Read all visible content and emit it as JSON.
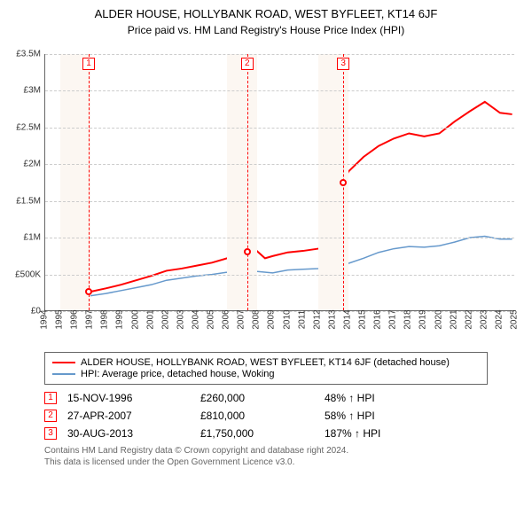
{
  "title": "ALDER HOUSE, HOLLYBANK ROAD, WEST BYFLEET, KT14 6JF",
  "subtitle": "Price paid vs. HM Land Registry's House Price Index (HPI)",
  "chart": {
    "type": "line",
    "xlim": [
      1994,
      2025
    ],
    "ylim": [
      0,
      3500000
    ],
    "ytick_step": 500000,
    "yticks": [
      "£0",
      "£500K",
      "£1M",
      "£1.5M",
      "£2M",
      "£2.5M",
      "£3M",
      "£3.5M"
    ],
    "xticks": [
      1994,
      1995,
      1996,
      1997,
      1998,
      1999,
      2000,
      2001,
      2002,
      2003,
      2004,
      2005,
      2006,
      2007,
      2008,
      2009,
      2010,
      2011,
      2012,
      2013,
      2014,
      2015,
      2016,
      2017,
      2018,
      2019,
      2020,
      2021,
      2022,
      2023,
      2024,
      2025
    ],
    "grid_color": "#cccccc",
    "background_color": "#ffffff",
    "shaded_bands": [
      [
        1995,
        1997
      ],
      [
        2006,
        2008
      ],
      [
        2012,
        2014
      ]
    ],
    "shade_color": "#fcf7f2",
    "series": [
      {
        "name": "ALDER HOUSE, HOLLYBANK ROAD, WEST BYFLEET, KT14 6JF (detached house)",
        "color": "#ff0000",
        "line_width": 2,
        "points": [
          [
            1995,
            200000
          ],
          [
            1996.87,
            260000
          ],
          [
            1998,
            310000
          ],
          [
            1999,
            360000
          ],
          [
            2000,
            420000
          ],
          [
            2001,
            480000
          ],
          [
            2002,
            550000
          ],
          [
            2003,
            580000
          ],
          [
            2004,
            620000
          ],
          [
            2005,
            660000
          ],
          [
            2006,
            720000
          ],
          [
            2007,
            810000
          ],
          [
            2007.8,
            850000
          ],
          [
            2008.5,
            720000
          ],
          [
            2009,
            750000
          ],
          [
            2010,
            800000
          ],
          [
            2011,
            820000
          ],
          [
            2012,
            850000
          ],
          [
            2013,
            880000
          ],
          [
            2013.66,
            1750000
          ],
          [
            2014,
            1900000
          ],
          [
            2015,
            2100000
          ],
          [
            2016,
            2250000
          ],
          [
            2017,
            2350000
          ],
          [
            2018,
            2420000
          ],
          [
            2019,
            2380000
          ],
          [
            2020,
            2420000
          ],
          [
            2021,
            2580000
          ],
          [
            2022,
            2720000
          ],
          [
            2023,
            2850000
          ],
          [
            2024,
            2700000
          ],
          [
            2024.8,
            2680000
          ]
        ]
      },
      {
        "name": "HPI: Average price, detached house, Woking",
        "color": "#6699cc",
        "line_width": 1.5,
        "points": [
          [
            1995,
            180000
          ],
          [
            1996,
            190000
          ],
          [
            1997,
            210000
          ],
          [
            1998,
            240000
          ],
          [
            1999,
            280000
          ],
          [
            2000,
            320000
          ],
          [
            2001,
            360000
          ],
          [
            2002,
            420000
          ],
          [
            2003,
            450000
          ],
          [
            2004,
            480000
          ],
          [
            2005,
            500000
          ],
          [
            2006,
            530000
          ],
          [
            2007,
            570000
          ],
          [
            2008,
            540000
          ],
          [
            2009,
            520000
          ],
          [
            2010,
            560000
          ],
          [
            2011,
            570000
          ],
          [
            2012,
            580000
          ],
          [
            2013,
            600000
          ],
          [
            2014,
            650000
          ],
          [
            2015,
            720000
          ],
          [
            2016,
            800000
          ],
          [
            2017,
            850000
          ],
          [
            2018,
            880000
          ],
          [
            2019,
            870000
          ],
          [
            2020,
            890000
          ],
          [
            2021,
            940000
          ],
          [
            2022,
            1000000
          ],
          [
            2023,
            1020000
          ],
          [
            2024,
            980000
          ],
          [
            2024.8,
            980000
          ]
        ]
      }
    ],
    "markers": [
      {
        "n": "1",
        "x": 1996.87,
        "y": 260000,
        "date": "15-NOV-1996",
        "price": "£260,000",
        "pct": "48% ↑ HPI"
      },
      {
        "n": "2",
        "x": 2007.32,
        "y": 810000,
        "date": "27-APR-2007",
        "price": "£810,000",
        "pct": "58% ↑ HPI"
      },
      {
        "n": "3",
        "x": 2013.66,
        "y": 1750000,
        "date": "30-AUG-2013",
        "price": "£1,750,000",
        "pct": "187% ↑ HPI"
      }
    ]
  },
  "footer_line1": "Contains HM Land Registry data © Crown copyright and database right 2024.",
  "footer_line2": "This data is licensed under the Open Government Licence v3.0."
}
